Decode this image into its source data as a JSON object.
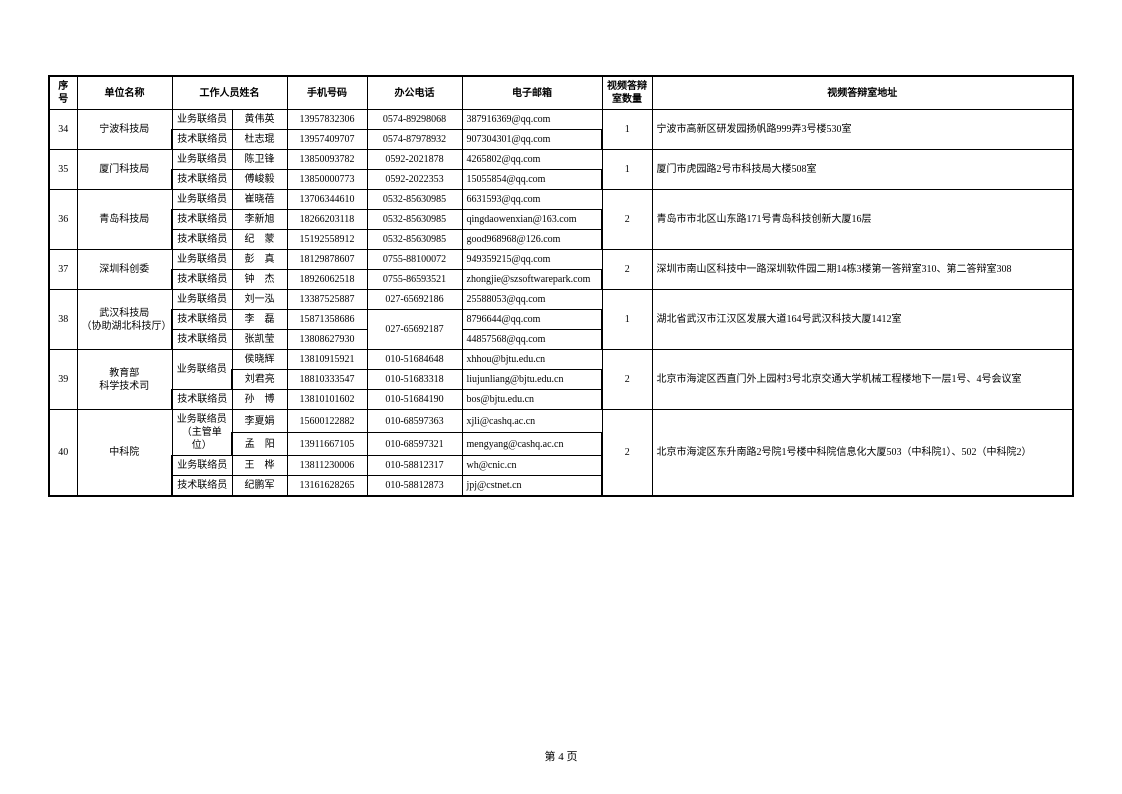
{
  "headers": {
    "seq": "序号",
    "org": "单位名称",
    "staff": "工作人员姓名",
    "mobile": "手机号码",
    "phone": "办公电话",
    "email": "电子邮箱",
    "room_count": "视频答辩室数量",
    "room_addr": "视频答辩室地址"
  },
  "role_biz": "业务联络员",
  "role_tech": "技术联络员",
  "role_biz_host": "业务联络员（主管单位）",
  "rows": {
    "r34": {
      "seq": "34",
      "org": "宁波科技局",
      "p1_role": "业务联络员",
      "p1_name": "黄伟英",
      "p1_mobile": "13957832306",
      "p1_phone": "0574-89298068",
      "p1_email": "387916369@qq.com",
      "p2_role": "技术联络员",
      "p2_name": "杜志琨",
      "p2_mobile": "13957409707",
      "p2_phone": "0574-87978932",
      "p2_email": "907304301@qq.com",
      "count": "1",
      "addr": "宁波市高新区研发园扬帆路999弄3号楼530室"
    },
    "r35": {
      "seq": "35",
      "org": "厦门科技局",
      "p1_role": "业务联络员",
      "p1_name": "陈卫锋",
      "p1_mobile": "13850093782",
      "p1_phone": "0592-2021878",
      "p1_email": "4265802@qq.com",
      "p2_role": "技术联络员",
      "p2_name": "傅峻毅",
      "p2_mobile": "13850000773",
      "p2_phone": "0592-2022353",
      "p2_email": "15055854@qq.com",
      "count": "1",
      "addr": "厦门市虎园路2号市科技局大楼508室"
    },
    "r36": {
      "seq": "36",
      "org": "青岛科技局",
      "p1_role": "业务联络员",
      "p1_name": "崔晓蓓",
      "p1_mobile": "13706344610",
      "p1_phone": "0532-85630985",
      "p1_email": "6631593@qq.com",
      "p2_role": "技术联络员",
      "p2_name": "李新旭",
      "p2_mobile": "18266203118",
      "p2_phone": "0532-85630985",
      "p2_email": "qingdaowenxian@163.com",
      "p3_role": "技术联络员",
      "p3_name": "纪　蒙",
      "p3_mobile": "15192558912",
      "p3_phone": "0532-85630985",
      "p3_email": "good968968@126.com",
      "count": "2",
      "addr": "青岛市市北区山东路171号青岛科技创新大厦16层"
    },
    "r37": {
      "seq": "37",
      "org": "深圳科创委",
      "p1_role": "业务联络员",
      "p1_name": "彭　真",
      "p1_mobile": "18129878607",
      "p1_phone": "0755-88100072",
      "p1_email": "949359215@qq.com",
      "p2_role": "技术联络员",
      "p2_name": "钟　杰",
      "p2_mobile": "18926062518",
      "p2_phone": "0755-86593521",
      "p2_email": "zhongjie@szsoftwarepark.com",
      "count": "2",
      "addr": "深圳市南山区科技中一路深圳软件园二期14栋3楼第一答辩室310、第二答辩室308"
    },
    "r38": {
      "seq": "38",
      "org": "武汉科技局\n（协助湖北科技厅）",
      "p1_role": "业务联络员",
      "p1_name": "刘一泓",
      "p1_mobile": "13387525887",
      "p1_phone": "027-65692186",
      "p1_email": "25588053@qq.com",
      "p2_role": "技术联络员",
      "p2_name": "李　磊",
      "p2_mobile": "15871358686",
      "p2_phone": "027-65692187",
      "p2_email": "8796644@qq.com",
      "p3_role": "技术联络员",
      "p3_name": "张凯莹",
      "p3_mobile": "13808627930",
      "p3_email": "44857568@qq.com",
      "count": "1",
      "addr": "湖北省武汉市江汉区发展大道164号武汉科技大厦1412室"
    },
    "r39": {
      "seq": "39",
      "org": "教育部\n科学技术司",
      "p1_role": "业务联络员",
      "p1_name": "侯晓辉",
      "p1_mobile": "13810915921",
      "p1_phone": "010-51684648",
      "p1_email": "xhhou@bjtu.edu.cn",
      "p2_name": "刘君亮",
      "p2_mobile": "18810333547",
      "p2_phone": "010-51683318",
      "p2_email": "liujunliang@bjtu.edu.cn",
      "p3_role": "技术联络员",
      "p3_name": "孙　博",
      "p3_mobile": "13810101602",
      "p3_phone": "010-51684190",
      "p3_email": "bos@bjtu.edu.cn",
      "count": "2",
      "addr": "北京市海淀区西直门外上园村3号北京交通大学机械工程楼地下一层1号、4号会议室"
    },
    "r40": {
      "seq": "40",
      "org": "中科院",
      "p1_role": "业务联络员（主管单位）",
      "p1_name": "李夏娟",
      "p1_mobile": "15600122882",
      "p1_phone": "010-68597363",
      "p1_email": "xjli@cashq.ac.cn",
      "p2_name": "孟　阳",
      "p2_mobile": "13911667105",
      "p2_phone": "010-68597321",
      "p2_email": "mengyang@cashq.ac.cn",
      "p3_role": "业务联络员",
      "p3_name": "王　桦",
      "p3_mobile": "13811230006",
      "p3_phone": "010-58812317",
      "p3_email": "wh@cnic.cn",
      "p4_role": "技术联络员",
      "p4_name": "纪鹏军",
      "p4_mobile": "13161628265",
      "p4_phone": "010-58812873",
      "p4_email": "jpj@cstnet.cn",
      "count": "2",
      "addr": "北京市海淀区东升南路2号院1号楼中科院信息化大厦503（中科院1）、502（中科院2）"
    }
  },
  "footer": "第 4 页"
}
